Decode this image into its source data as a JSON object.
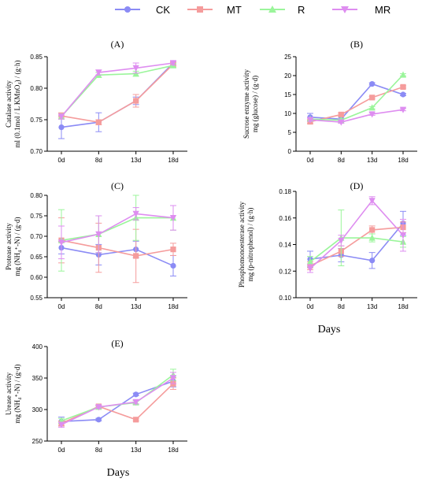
{
  "legend": [
    {
      "name": "CK",
      "color": "#8B8BF5",
      "marker": "circle"
    },
    {
      "name": "MT",
      "color": "#F59C9C",
      "marker": "square"
    },
    {
      "name": "R",
      "color": "#9BF59B",
      "marker": "triangle-up"
    },
    {
      "name": "MR",
      "color": "#DE8DF0",
      "marker": "triangle-down"
    }
  ],
  "days_label": "Days",
  "chart_data": [
    {
      "id": "A",
      "type": "line",
      "title": "(A)",
      "ylabel": [
        "Catalase activity",
        "ml (0.1mol / L KMnO₄) / (g·h)"
      ],
      "categories": [
        "0d",
        "8d",
        "13d",
        "18d"
      ],
      "ylim": [
        0.7,
        0.85
      ],
      "yticks": [
        0.7,
        0.75,
        0.8,
        0.85
      ],
      "ytick_labels": [
        "0.70",
        "0.75",
        "0.80",
        "0.85"
      ],
      "series": [
        {
          "name": "CK",
          "values": [
            0.738,
            0.746,
            0.78,
            0.84
          ],
          "errors": [
            0.018,
            0.015,
            0.006,
            0.003
          ]
        },
        {
          "name": "MT",
          "values": [
            0.756,
            0.746,
            0.78,
            0.838
          ],
          "errors": [
            0.005,
            0.004,
            0.01,
            0.003
          ]
        },
        {
          "name": "R",
          "values": [
            0.755,
            0.821,
            0.823,
            0.836
          ],
          "errors": [
            0.004,
            0.004,
            0.004,
            0.003
          ]
        },
        {
          "name": "MR",
          "values": [
            0.755,
            0.825,
            0.832,
            0.84
          ],
          "errors": [
            0.004,
            0.004,
            0.008,
            0.003
          ]
        }
      ]
    },
    {
      "id": "B",
      "type": "line",
      "title": "(B)",
      "ylabel": [
        "Sucrose enzyme activity",
        "mg (glucose) / (g·d)"
      ],
      "categories": [
        "0d",
        "8d",
        "13d",
        "18d"
      ],
      "ylim": [
        0,
        25
      ],
      "yticks": [
        0,
        5,
        10,
        15,
        20,
        25
      ],
      "ytick_labels": [
        "0",
        "5",
        "10",
        "15",
        "20",
        "25"
      ],
      "series": [
        {
          "name": "CK",
          "values": [
            9.0,
            8.5,
            17.8,
            15.0
          ],
          "errors": [
            1.0,
            0.5,
            0.3,
            0.3
          ]
        },
        {
          "name": "MT",
          "values": [
            7.8,
            9.7,
            14.2,
            17.0
          ],
          "errors": [
            0.5,
            0.4,
            0.3,
            0.3
          ]
        },
        {
          "name": "R",
          "values": [
            8.5,
            8.2,
            11.5,
            20.2
          ],
          "errors": [
            0.4,
            0.4,
            0.3,
            0.3
          ]
        },
        {
          "name": "MR",
          "values": [
            8.3,
            7.7,
            9.8,
            11.0
          ],
          "errors": [
            0.4,
            0.3,
            0.3,
            0.3
          ]
        }
      ]
    },
    {
      "id": "C",
      "type": "line",
      "title": "(C)",
      "ylabel": [
        "Protease activity",
        "mg (NH₄⁺-N) / (g·d)"
      ],
      "categories": [
        "0d",
        "8d",
        "13d",
        "18d"
      ],
      "ylim": [
        0.55,
        0.8
      ],
      "yticks": [
        0.55,
        0.6,
        0.65,
        0.7,
        0.75,
        0.8
      ],
      "ytick_labels": [
        "0.55",
        "0.60",
        "0.65",
        "0.70",
        "0.75",
        "0.80"
      ],
      "series": [
        {
          "name": "CK",
          "values": [
            0.672,
            0.655,
            0.668,
            0.628
          ],
          "errors": [
            0.015,
            0.025,
            0.02,
            0.025
          ]
        },
        {
          "name": "MT",
          "values": [
            0.69,
            0.672,
            0.652,
            0.668
          ],
          "errors": [
            0.055,
            0.06,
            0.065,
            0.015
          ]
        },
        {
          "name": "R",
          "values": [
            0.69,
            0.705,
            0.745,
            0.745
          ],
          "errors": [
            0.075,
            0.045,
            0.055,
            0.03
          ]
        },
        {
          "name": "MR",
          "values": [
            0.685,
            0.705,
            0.755,
            0.745
          ],
          "errors": [
            0.04,
            0.045,
            0.015,
            0.03
          ]
        }
      ]
    },
    {
      "id": "D",
      "type": "line",
      "title": "(D)",
      "ylabel": [
        "Phosphomonoesterase activity",
        "mg (p-nitrophenol) / (g·h)"
      ],
      "categories": [
        "0d",
        "8d",
        "13d",
        "18d"
      ],
      "ylim": [
        0.1,
        0.18
      ],
      "yticks": [
        0.1,
        0.12,
        0.14,
        0.16,
        0.18
      ],
      "ytick_labels": [
        "0.10",
        "0.12",
        "0.14",
        "0.16",
        "0.18"
      ],
      "series": [
        {
          "name": "CK",
          "values": [
            0.129,
            0.132,
            0.128,
            0.156
          ],
          "errors": [
            0.006,
            0.005,
            0.006,
            0.009
          ]
        },
        {
          "name": "MT",
          "values": [
            0.124,
            0.135,
            0.151,
            0.153
          ],
          "errors": [
            0.003,
            0.004,
            0.003,
            0.004
          ]
        },
        {
          "name": "R",
          "values": [
            0.127,
            0.145,
            0.145,
            0.142
          ],
          "errors": [
            0.004,
            0.021,
            0.003,
            0.004
          ]
        },
        {
          "name": "MR",
          "values": [
            0.122,
            0.143,
            0.173,
            0.147
          ],
          "errors": [
            0.003,
            0.004,
            0.003,
            0.012
          ]
        }
      ]
    },
    {
      "id": "E",
      "type": "line",
      "title": "(E)",
      "ylabel": [
        "Urease activity",
        "mg (NH₄⁺-N) / (g·d)"
      ],
      "categories": [
        "0d",
        "8d",
        "13d",
        "18d"
      ],
      "ylim": [
        250,
        400
      ],
      "yticks": [
        250,
        300,
        350,
        400
      ],
      "ytick_labels": [
        "250",
        "300",
        "350",
        "400"
      ],
      "series": [
        {
          "name": "CK",
          "values": [
            281,
            284,
            324,
            345
          ],
          "errors": [
            7,
            2,
            2,
            9
          ]
        },
        {
          "name": "MT",
          "values": [
            278,
            305,
            284,
            341
          ],
          "errors": [
            4,
            2,
            2,
            9
          ]
        },
        {
          "name": "R",
          "values": [
            282,
            304,
            311,
            355
          ],
          "errors": [
            4,
            2,
            3,
            9
          ]
        },
        {
          "name": "MR",
          "values": [
            276,
            304,
            312,
            350
          ],
          "errors": [
            4,
            2,
            3,
            9
          ]
        }
      ]
    }
  ]
}
